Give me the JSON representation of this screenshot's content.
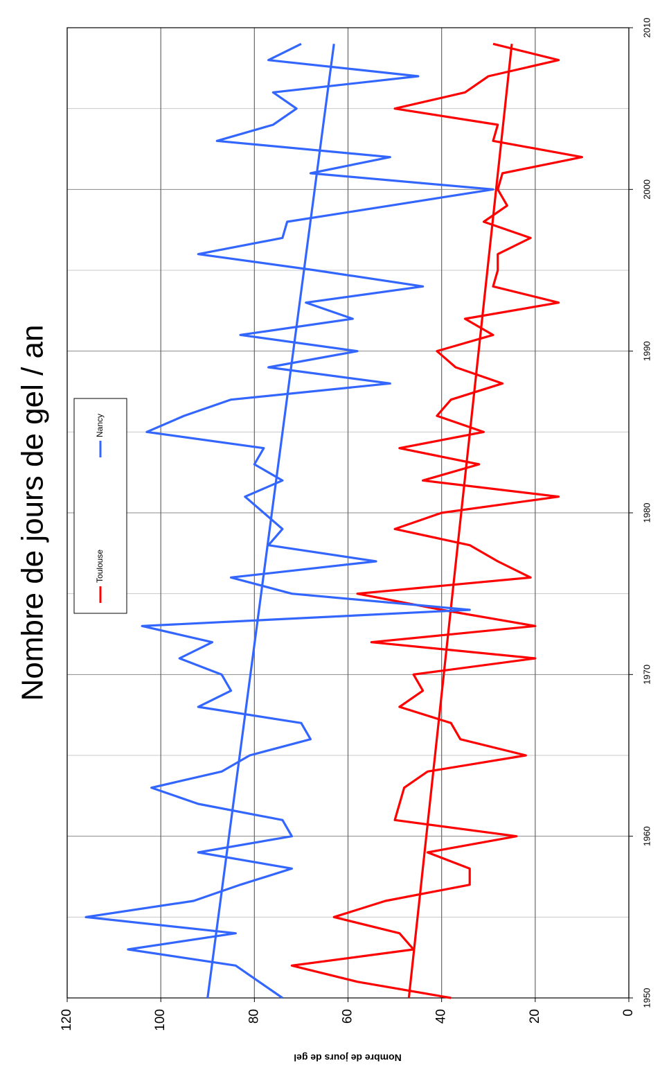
{
  "chart_data": {
    "type": "line",
    "title": "Nombre de jours de gel / an",
    "y_label": "Nombre de jours de gel",
    "x": [
      1950,
      1951,
      1952,
      1953,
      1954,
      1955,
      1956,
      1957,
      1958,
      1959,
      1960,
      1961,
      1962,
      1963,
      1964,
      1965,
      1966,
      1967,
      1968,
      1969,
      1970,
      1971,
      1972,
      1973,
      1974,
      1975,
      1976,
      1977,
      1978,
      1979,
      1980,
      1981,
      1982,
      1983,
      1984,
      1985,
      1986,
      1987,
      1988,
      1989,
      1990,
      1991,
      1992,
      1993,
      1994,
      1995,
      1996,
      1997,
      1998,
      1999,
      2000,
      2001,
      2002,
      2003,
      2004,
      2005,
      2006,
      2007,
      2008,
      2009
    ],
    "series": [
      {
        "name": "Toulouse",
        "color": "#ff0000",
        "values": [
          38,
          58,
          72,
          46,
          49,
          63,
          52,
          34,
          34,
          43,
          24,
          50,
          49,
          48,
          43,
          22,
          36,
          38,
          49,
          44,
          46,
          20,
          55,
          20,
          40,
          58,
          21,
          28,
          34,
          50,
          40,
          15,
          44,
          32,
          49,
          31,
          41,
          38,
          27,
          37,
          41,
          29,
          35,
          15,
          29,
          28,
          28,
          21,
          31,
          26,
          28,
          27,
          10,
          29,
          28,
          50,
          35,
          30,
          15,
          29
        ]
      },
      {
        "name": "Nancy",
        "color": "#3366ff",
        "values": [
          74,
          79,
          84,
          107,
          84,
          116,
          93,
          83,
          72,
          92,
          72,
          74,
          92,
          102,
          87,
          81,
          68,
          70,
          92,
          85,
          87,
          96,
          89,
          104,
          34,
          72,
          85,
          54,
          77,
          74,
          78,
          82,
          74,
          80,
          78,
          103,
          95,
          85,
          51,
          77,
          58,
          83,
          59,
          69,
          44,
          67,
          92,
          74,
          73,
          51,
          29,
          68,
          51,
          88,
          76,
          71,
          76,
          45,
          77,
          70
        ]
      }
    ],
    "trend_lines": [
      {
        "color": "#ff0000",
        "x": [
          1950,
          2009
        ],
        "values": [
          47,
          25
        ]
      },
      {
        "color": "#3366ff",
        "x": [
          1950,
          2009
        ],
        "values": [
          90,
          63
        ]
      }
    ],
    "xlim": [
      1950,
      2010
    ],
    "xticks": [
      1950,
      1960,
      1970,
      1980,
      1990,
      2000,
      2010
    ],
    "x_minor_grid": [
      1955,
      1965,
      1975,
      1985,
      1995,
      2005
    ],
    "ylim": [
      0,
      120
    ],
    "yticks": [
      0,
      20,
      40,
      60,
      80,
      100,
      120
    ],
    "grid": true
  }
}
